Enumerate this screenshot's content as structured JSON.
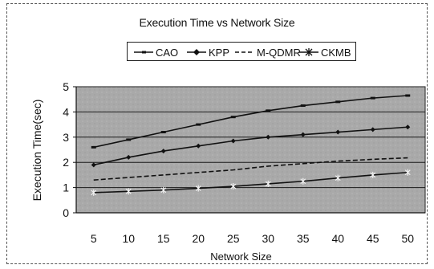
{
  "chart_data": {
    "type": "line",
    "title": "Execution Time vs Network Size",
    "xlabel": "Network Size",
    "ylabel": "Execution Time(sec)",
    "categories": [
      5,
      10,
      15,
      20,
      25,
      30,
      35,
      40,
      45,
      50
    ],
    "ylim": [
      0,
      5
    ],
    "yticks": [
      0,
      1,
      2,
      3,
      4,
      5
    ],
    "grid": true,
    "legend_position": "top",
    "series": [
      {
        "name": "CAO",
        "values": [
          2.6,
          2.9,
          3.2,
          3.5,
          3.8,
          4.05,
          4.25,
          4.4,
          4.55,
          4.65
        ],
        "marker": "dash",
        "dashed": false
      },
      {
        "name": "KPP",
        "values": [
          1.9,
          2.2,
          2.45,
          2.65,
          2.85,
          3.0,
          3.1,
          3.2,
          3.3,
          3.4
        ],
        "marker": "diamond",
        "dashed": false
      },
      {
        "name": "M-QDMR",
        "values": [
          1.3,
          1.4,
          1.5,
          1.6,
          1.7,
          1.85,
          1.95,
          2.05,
          2.12,
          2.18
        ],
        "marker": "none",
        "dashed": true
      },
      {
        "name": "CKMB",
        "values": [
          0.8,
          0.85,
          0.9,
          0.97,
          1.05,
          1.15,
          1.25,
          1.38,
          1.5,
          1.6
        ],
        "marker": "star",
        "dashed": false
      }
    ]
  }
}
